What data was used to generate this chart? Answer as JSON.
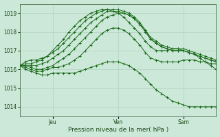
{
  "xlabel": "Pression niveau de la mer( hPa )",
  "bg_color": "#cce8d8",
  "grid_color": "#aaccbb",
  "line_color": "#1a6b1a",
  "ylim": [
    1013.5,
    1019.5
  ],
  "yticks": [
    1014,
    1015,
    1016,
    1017,
    1018,
    1019
  ],
  "xlim": [
    0,
    108
  ],
  "xtick_positions": [
    18,
    54,
    90
  ],
  "xtick_labels": [
    "Jeu",
    "Ven",
    "Sam"
  ],
  "series_x": [
    [
      0,
      3,
      6,
      9,
      12,
      15,
      18,
      21,
      24,
      27,
      30,
      33,
      36,
      39,
      42,
      45,
      48,
      51,
      54,
      57,
      60,
      63,
      66,
      69,
      72,
      75,
      78,
      81,
      84,
      87,
      90,
      93,
      96,
      99,
      102,
      105,
      108
    ],
    [
      0,
      3,
      6,
      9,
      12,
      15,
      18,
      21,
      24,
      27,
      30,
      33,
      36,
      39,
      42,
      45,
      48,
      51,
      54,
      57,
      60,
      63,
      66,
      69,
      72,
      75,
      78,
      81,
      84,
      87,
      90,
      93,
      96,
      99,
      102,
      105,
      108
    ],
    [
      0,
      3,
      6,
      9,
      12,
      15,
      18,
      21,
      24,
      27,
      30,
      33,
      36,
      39,
      42,
      45,
      48,
      51,
      54,
      57,
      60,
      63,
      66,
      69,
      72,
      75,
      78,
      81,
      84,
      87,
      90,
      93,
      96,
      99,
      102,
      105,
      108
    ],
    [
      0,
      3,
      6,
      9,
      12,
      15,
      18,
      21,
      24,
      27,
      30,
      33,
      36,
      39,
      42,
      45,
      48,
      51,
      54,
      57,
      60,
      63,
      66,
      69,
      72,
      75,
      78,
      81,
      84,
      87,
      90,
      93,
      96,
      99,
      102,
      105,
      108
    ],
    [
      0,
      3,
      6,
      9,
      12,
      15,
      18,
      21,
      24,
      27,
      30,
      33,
      36,
      39,
      42,
      45,
      48,
      51,
      54,
      57,
      60,
      63,
      66,
      69,
      72,
      75,
      78,
      81,
      84,
      87,
      90,
      93,
      96,
      99,
      102,
      105,
      108
    ],
    [
      0,
      3,
      6,
      9,
      12,
      15,
      18,
      21,
      24,
      27,
      30,
      33,
      36,
      39,
      42,
      45,
      48,
      51,
      54,
      57,
      60,
      63,
      66,
      69,
      72,
      75,
      78,
      81,
      84,
      87,
      90,
      93,
      96,
      99,
      102,
      105,
      108
    ]
  ],
  "series_y": [
    [
      1016.2,
      1016.4,
      1016.5,
      1016.5,
      1016.6,
      1016.7,
      1016.9,
      1017.1,
      1017.4,
      1017.7,
      1018.0,
      1018.3,
      1018.6,
      1018.8,
      1019.0,
      1019.1,
      1019.2,
      1019.2,
      1019.2,
      1019.1,
      1019.0,
      1018.8,
      1018.5,
      1018.1,
      1017.6,
      1017.4,
      1017.2,
      1017.1,
      1017.0,
      1017.0,
      1017.0,
      1016.9,
      1016.8,
      1016.6,
      1016.4,
      1016.2,
      1016.0
    ],
    [
      1016.2,
      1016.3,
      1016.3,
      1016.4,
      1016.5,
      1016.7,
      1017.0,
      1017.3,
      1017.6,
      1018.0,
      1018.3,
      1018.6,
      1018.8,
      1019.0,
      1019.1,
      1019.2,
      1019.2,
      1019.1,
      1019.0,
      1018.8,
      1018.5,
      1018.2,
      1017.9,
      1017.5,
      1017.2,
      1017.0,
      1017.0,
      1017.0,
      1017.1,
      1017.1,
      1017.1,
      1017.0,
      1016.9,
      1016.8,
      1016.7,
      1016.6,
      1016.5
    ],
    [
      1016.2,
      1016.2,
      1016.2,
      1016.2,
      1016.3,
      1016.4,
      1016.6,
      1016.8,
      1017.0,
      1017.3,
      1017.6,
      1017.9,
      1018.2,
      1018.5,
      1018.7,
      1018.9,
      1019.1,
      1019.1,
      1019.1,
      1019.0,
      1018.9,
      1018.7,
      1018.4,
      1018.1,
      1017.7,
      1017.5,
      1017.3,
      1017.2,
      1017.1,
      1017.1,
      1017.0,
      1016.9,
      1016.8,
      1016.7,
      1016.6,
      1016.5,
      1016.4
    ],
    [
      1016.2,
      1016.2,
      1016.1,
      1016.0,
      1016.0,
      1016.1,
      1016.2,
      1016.4,
      1016.6,
      1016.8,
      1017.1,
      1017.4,
      1017.7,
      1018.0,
      1018.3,
      1018.6,
      1018.8,
      1018.9,
      1019.0,
      1019.0,
      1018.9,
      1018.7,
      1018.4,
      1018.0,
      1017.6,
      1017.4,
      1017.2,
      1017.1,
      1017.0,
      1017.0,
      1017.0,
      1016.9,
      1016.8,
      1016.7,
      1016.6,
      1016.5,
      1016.4
    ],
    [
      1016.2,
      1016.1,
      1016.0,
      1015.9,
      1015.9,
      1016.0,
      1016.1,
      1016.1,
      1016.2,
      1016.3,
      1016.5,
      1016.7,
      1017.0,
      1017.3,
      1017.6,
      1017.9,
      1018.1,
      1018.2,
      1018.2,
      1018.1,
      1017.9,
      1017.6,
      1017.3,
      1016.9,
      1016.6,
      1016.5,
      1016.4,
      1016.4,
      1016.4,
      1016.4,
      1016.5,
      1016.5,
      1016.5,
      1016.4,
      1016.4,
      1016.3,
      1016.3
    ],
    [
      1016.2,
      1016.0,
      1015.9,
      1015.8,
      1015.7,
      1015.7,
      1015.8,
      1015.8,
      1015.8,
      1015.8,
      1015.8,
      1015.9,
      1016.0,
      1016.1,
      1016.2,
      1016.3,
      1016.4,
      1016.4,
      1016.4,
      1016.3,
      1016.2,
      1016.0,
      1015.8,
      1015.5,
      1015.2,
      1014.9,
      1014.7,
      1014.5,
      1014.3,
      1014.2,
      1014.1,
      1014.0,
      1014.0,
      1014.0,
      1014.0,
      1014.0,
      1014.0
    ]
  ]
}
